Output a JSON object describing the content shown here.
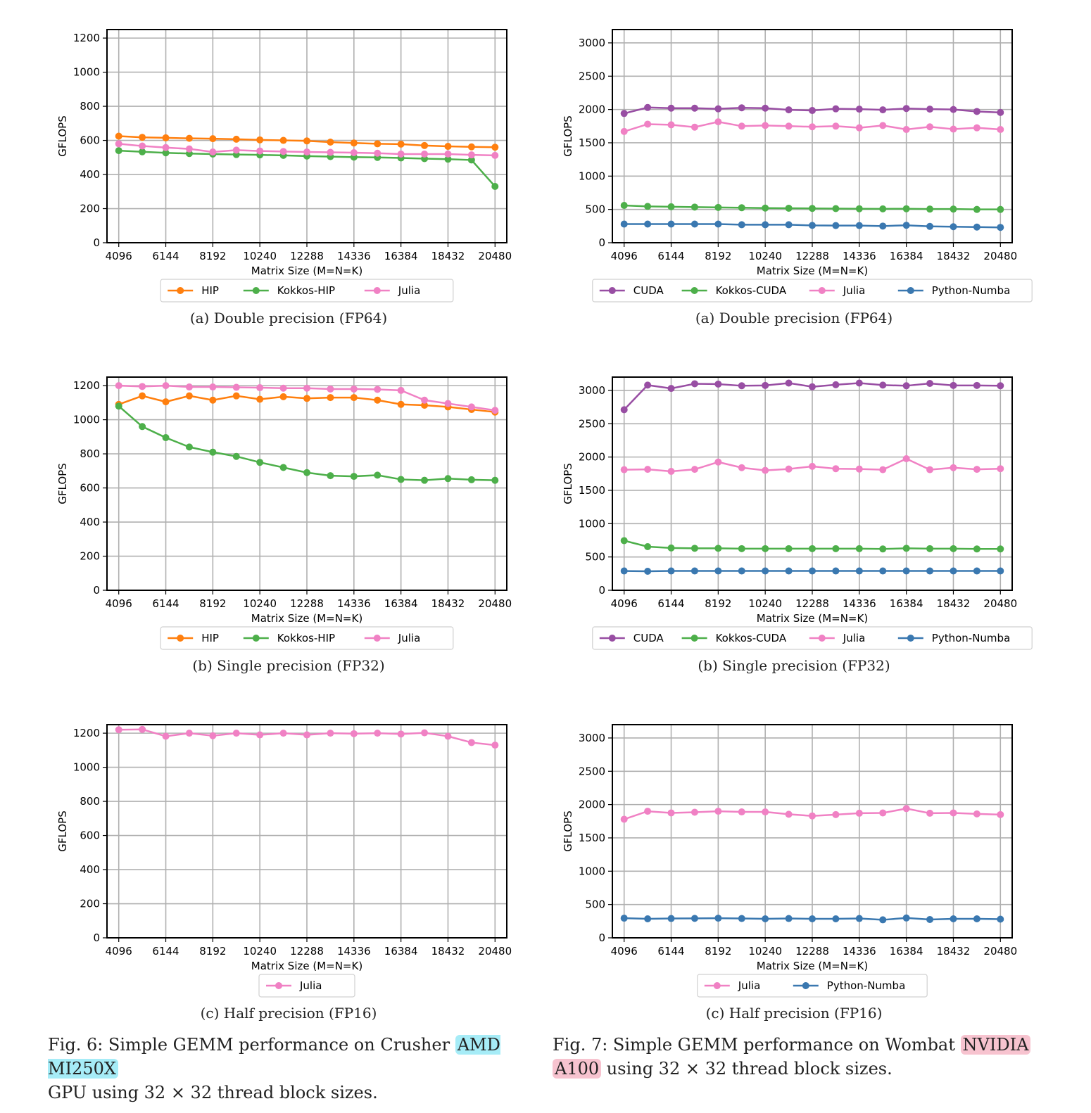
{
  "chart_data": [
    {
      "type": "line",
      "id": "fig6a",
      "caption": "(a) Double precision (FP64)",
      "xlabel": "Matrix Size (M=N=K)",
      "ylabel": "GFLOPS",
      "ylim": [
        0,
        1250
      ],
      "yticks": [
        0,
        200,
        400,
        600,
        800,
        1000,
        1200
      ],
      "xticks": [
        4096,
        6144,
        8192,
        10240,
        12288,
        14336,
        16384,
        18432,
        20480
      ],
      "x": [
        4096,
        5120,
        6144,
        7168,
        8192,
        9216,
        10240,
        11264,
        12288,
        13312,
        14336,
        15360,
        16384,
        17408,
        18432,
        19456,
        20480
      ],
      "grid": true,
      "legend_position": "bottom",
      "series": [
        {
          "name": "HIP",
          "color": "#ff7f0e",
          "values": [
            625,
            618,
            615,
            612,
            610,
            607,
            603,
            600,
            597,
            590,
            585,
            580,
            578,
            570,
            565,
            562,
            560
          ]
        },
        {
          "name": "Kokkos-HIP",
          "color": "#4daf4a",
          "values": [
            540,
            533,
            527,
            523,
            520,
            517,
            515,
            512,
            508,
            505,
            502,
            500,
            497,
            493,
            490,
            485,
            330
          ]
        },
        {
          "name": "Julia",
          "color": "#f081c4",
          "values": [
            580,
            567,
            558,
            550,
            532,
            543,
            538,
            535,
            532,
            530,
            528,
            525,
            520,
            520,
            520,
            515,
            512
          ]
        }
      ]
    },
    {
      "type": "line",
      "id": "fig7a",
      "caption": "(a) Double precision (FP64)",
      "xlabel": "Matrix Size (M=N=K)",
      "ylabel": "GFLOPS",
      "ylim": [
        0,
        3200
      ],
      "yticks": [
        0,
        500,
        1000,
        1500,
        2000,
        2500,
        3000
      ],
      "xticks": [
        4096,
        6144,
        8192,
        10240,
        12288,
        14336,
        16384,
        18432,
        20480
      ],
      "x": [
        4096,
        5120,
        6144,
        7168,
        8192,
        9216,
        10240,
        11264,
        12288,
        13312,
        14336,
        15360,
        16384,
        17408,
        18432,
        19456,
        20480
      ],
      "grid": true,
      "legend_position": "bottom",
      "series": [
        {
          "name": "CUDA",
          "color": "#984ea3",
          "values": [
            1940,
            2030,
            2020,
            2020,
            2010,
            2025,
            2020,
            1995,
            1985,
            2010,
            2005,
            1995,
            2015,
            2005,
            2000,
            1970,
            1955
          ]
        },
        {
          "name": "Kokkos-CUDA",
          "color": "#4daf4a",
          "values": [
            560,
            545,
            540,
            535,
            530,
            525,
            520,
            518,
            515,
            512,
            510,
            508,
            510,
            505,
            505,
            500,
            500
          ]
        },
        {
          "name": "Julia",
          "color": "#f081c4",
          "values": [
            1670,
            1780,
            1770,
            1735,
            1815,
            1750,
            1760,
            1750,
            1740,
            1750,
            1725,
            1760,
            1700,
            1740,
            1705,
            1725,
            1700
          ]
        },
        {
          "name": "Python-Numba",
          "color": "#3a78b0",
          "values": [
            280,
            280,
            280,
            280,
            280,
            270,
            270,
            270,
            260,
            258,
            258,
            250,
            262,
            245,
            240,
            235,
            230
          ]
        }
      ]
    },
    {
      "type": "line",
      "id": "fig6b",
      "caption": "(b) Single precision (FP32)",
      "xlabel": "Matrix Size (M=N=K)",
      "ylabel": "GFLOPS",
      "ylim": [
        0,
        1250
      ],
      "yticks": [
        0,
        200,
        400,
        600,
        800,
        1000,
        1200
      ],
      "xticks": [
        4096,
        6144,
        8192,
        10240,
        12288,
        14336,
        16384,
        18432,
        20480
      ],
      "x": [
        4096,
        5120,
        6144,
        7168,
        8192,
        9216,
        10240,
        11264,
        12288,
        13312,
        14336,
        15360,
        16384,
        17408,
        18432,
        19456,
        20480
      ],
      "grid": true,
      "legend_position": "bottom",
      "series": [
        {
          "name": "HIP",
          "color": "#ff7f0e",
          "values": [
            1090,
            1140,
            1105,
            1140,
            1115,
            1140,
            1120,
            1135,
            1125,
            1130,
            1130,
            1115,
            1090,
            1085,
            1075,
            1060,
            1045
          ]
        },
        {
          "name": "Kokkos-HIP",
          "color": "#4daf4a",
          "values": [
            1080,
            960,
            895,
            840,
            810,
            785,
            750,
            720,
            690,
            672,
            668,
            675,
            650,
            645,
            655,
            648,
            645
          ]
        },
        {
          "name": "Julia",
          "color": "#f081c4",
          "values": [
            1200,
            1195,
            1200,
            1192,
            1192,
            1190,
            1188,
            1185,
            1185,
            1180,
            1180,
            1178,
            1172,
            1115,
            1095,
            1075,
            1055
          ]
        }
      ]
    },
    {
      "type": "line",
      "id": "fig7b",
      "caption": "(b) Single precision (FP32)",
      "xlabel": "Matrix Size (M=N=K)",
      "ylabel": "GFLOPS",
      "ylim": [
        0,
        3200
      ],
      "yticks": [
        0,
        500,
        1000,
        1500,
        2000,
        2500,
        3000
      ],
      "xticks": [
        4096,
        6144,
        8192,
        10240,
        12288,
        14336,
        16384,
        18432,
        20480
      ],
      "x": [
        4096,
        5120,
        6144,
        7168,
        8192,
        9216,
        10240,
        11264,
        12288,
        13312,
        14336,
        15360,
        16384,
        17408,
        18432,
        19456,
        20480
      ],
      "grid": true,
      "legend_position": "bottom",
      "series": [
        {
          "name": "CUDA",
          "color": "#984ea3",
          "values": [
            2710,
            3080,
            3030,
            3100,
            3095,
            3070,
            3075,
            3110,
            3055,
            3085,
            3110,
            3080,
            3070,
            3105,
            3075,
            3075,
            3070
          ]
        },
        {
          "name": "Kokkos-CUDA",
          "color": "#4daf4a",
          "values": [
            745,
            655,
            635,
            630,
            630,
            625,
            625,
            625,
            625,
            625,
            625,
            620,
            630,
            625,
            625,
            620,
            620
          ]
        },
        {
          "name": "Julia",
          "color": "#f081c4",
          "values": [
            1810,
            1815,
            1785,
            1815,
            1925,
            1840,
            1800,
            1820,
            1860,
            1825,
            1820,
            1810,
            1975,
            1810,
            1840,
            1815,
            1825
          ]
        },
        {
          "name": "Python-Numba",
          "color": "#3a78b0",
          "values": [
            290,
            285,
            290,
            290,
            290,
            290,
            290,
            290,
            290,
            290,
            290,
            290,
            290,
            290,
            290,
            290,
            290
          ]
        }
      ]
    },
    {
      "type": "line",
      "id": "fig6c",
      "caption": "(c) Half precision (FP16)",
      "xlabel": "Matrix Size (M=N=K)",
      "ylabel": "GFLOPS",
      "ylim": [
        0,
        1250
      ],
      "yticks": [
        0,
        200,
        400,
        600,
        800,
        1000,
        1200
      ],
      "xticks": [
        4096,
        6144,
        8192,
        10240,
        12288,
        14336,
        16384,
        18432,
        20480
      ],
      "x": [
        4096,
        5120,
        6144,
        7168,
        8192,
        9216,
        10240,
        11264,
        12288,
        13312,
        14336,
        15360,
        16384,
        17408,
        18432,
        19456,
        20480
      ],
      "grid": true,
      "legend_position": "bottom",
      "series": [
        {
          "name": "Julia",
          "color": "#f081c4",
          "values": [
            1220,
            1222,
            1182,
            1200,
            1185,
            1200,
            1190,
            1200,
            1190,
            1200,
            1197,
            1200,
            1195,
            1202,
            1182,
            1145,
            1130
          ]
        }
      ]
    },
    {
      "type": "line",
      "id": "fig7c",
      "caption": "(c) Half precision (FP16)",
      "xlabel": "Matrix Size (M=N=K)",
      "ylabel": "GFLOPS",
      "ylim": [
        0,
        3200
      ],
      "yticks": [
        0,
        500,
        1000,
        1500,
        2000,
        2500,
        3000
      ],
      "xticks": [
        4096,
        6144,
        8192,
        10240,
        12288,
        14336,
        16384,
        18432,
        20480
      ],
      "x": [
        4096,
        5120,
        6144,
        7168,
        8192,
        9216,
        10240,
        11264,
        12288,
        13312,
        14336,
        15360,
        16384,
        17408,
        18432,
        19456,
        20480
      ],
      "grid": true,
      "legend_position": "bottom",
      "series": [
        {
          "name": "Julia",
          "color": "#f081c4",
          "values": [
            1780,
            1900,
            1875,
            1885,
            1900,
            1890,
            1890,
            1855,
            1830,
            1850,
            1870,
            1875,
            1940,
            1870,
            1875,
            1860,
            1850
          ]
        },
        {
          "name": "Python-Numba",
          "color": "#3a78b0",
          "values": [
            295,
            285,
            290,
            292,
            295,
            290,
            285,
            290,
            285,
            285,
            290,
            270,
            298,
            275,
            285,
            285,
            280
          ]
        }
      ]
    }
  ],
  "captions": {
    "fig6_before": "Fig. 6: Simple GEMM performance on Crusher",
    "fig6_highlight": "AMD MI250X",
    "fig6_after": "GPU using 32 × 32 thread block sizes.",
    "fig7_before": "Fig. 7: Simple GEMM performance on Wombat",
    "fig7_highlight1": "NVIDIA",
    "fig7_highlight2": "A100",
    "fig7_after": "using 32 × 32 thread block sizes."
  },
  "colors": {
    "fig6_highlight": "#a6ecf7",
    "fig7_highlight": "#f7c3cf",
    "grid": "#b0b0b0"
  }
}
